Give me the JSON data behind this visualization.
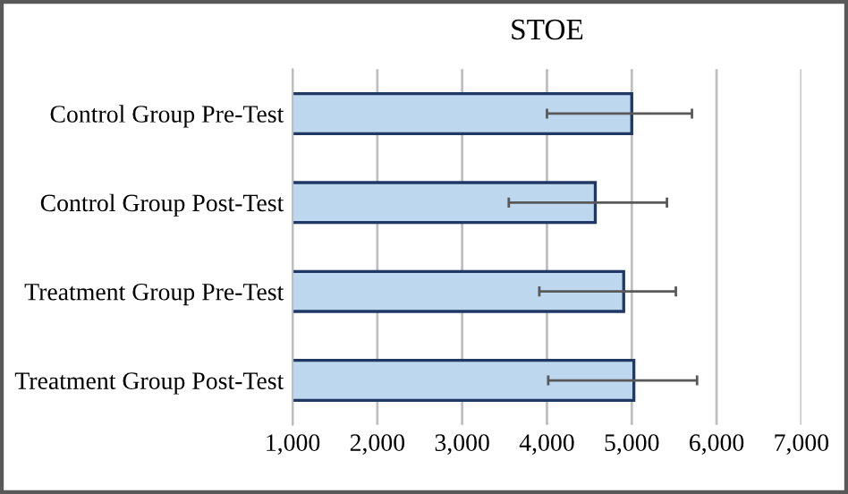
{
  "chart_data": {
    "type": "bar",
    "orientation": "horizontal",
    "title": "STOE",
    "categories": [
      "Control Group Pre-Test",
      "Control Group Post-Test",
      "Treatment Group Pre-Test",
      "Treatment Group Post-Test"
    ],
    "series": [
      {
        "color": "#bdd7ee",
        "values": [
          5000,
          4570,
          4905,
          5025
        ],
        "errors": [
          [
            4000,
            5710
          ],
          [
            3550,
            5415
          ],
          [
            3910,
            5520
          ],
          [
            4015,
            5770
          ]
        ]
      }
    ],
    "xlim": [
      1000,
      7000
    ],
    "xticks": [
      {
        "value": 1000,
        "label": "1,000"
      },
      {
        "value": 2000,
        "label": "2,000"
      },
      {
        "value": 3000,
        "label": "3,000"
      },
      {
        "value": 4000,
        "label": "4,000"
      },
      {
        "value": 5000,
        "label": "5,000"
      },
      {
        "value": 6000,
        "label": "6,000"
      },
      {
        "value": 7000,
        "label": "7,000"
      }
    ],
    "grid": "x",
    "legend": false
  }
}
